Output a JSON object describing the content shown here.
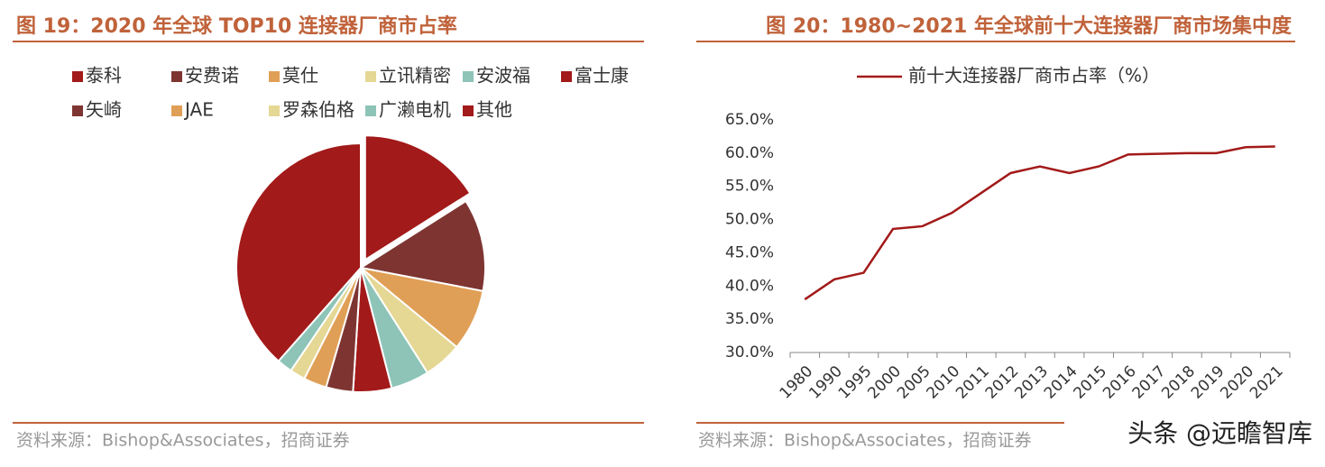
{
  "chart_data": [
    {
      "type": "pie",
      "title": "图 19：2020 年全球 TOP10 连接器厂商市占率",
      "categories": [
        "泰科",
        "安费诺",
        "莫仕",
        "立讯精密",
        "安波福",
        "富士康",
        "矢崎",
        "JAE",
        "罗森伯格",
        "广濑电机",
        "其他"
      ],
      "values": [
        16,
        12,
        8,
        5,
        5,
        5,
        3.5,
        3,
        2,
        2,
        38.5
      ],
      "colors": [
        "#a21a19",
        "#7e3532",
        "#e09f56",
        "#e5d794",
        "#8dc4b7",
        "#a21a19",
        "#7e3532",
        "#e09f56",
        "#e5d794",
        "#8dc4b7",
        "#a21a19"
      ],
      "source": "资料来源：Bishop&Associates，招商证券"
    },
    {
      "type": "line",
      "title": "图 20：1980~2021 年全球前十大连接器厂商市场集中度",
      "categories": [
        "1980",
        "1990",
        "1995",
        "2000",
        "2005",
        "2010",
        "2011",
        "2012",
        "2013",
        "2014",
        "2015",
        "2016",
        "2017",
        "2018",
        "2019",
        "2020",
        "2021"
      ],
      "series": [
        {
          "name": "前十大连接器厂商市占率（%）",
          "color": "#a21a19",
          "values": [
            38,
            41,
            42,
            48.6,
            49,
            51,
            54,
            57,
            58,
            57,
            58,
            59.8,
            59.9,
            60,
            60,
            60.9,
            61
          ]
        }
      ],
      "ylim": [
        30,
        65
      ],
      "yticks": [
        {
          "value": 30,
          "label": "30.0%"
        },
        {
          "value": 35,
          "label": "35.0%"
        },
        {
          "value": 40,
          "label": "40.0%"
        },
        {
          "value": 45,
          "label": "45.0%"
        },
        {
          "value": 50,
          "label": "50.0%"
        },
        {
          "value": 55,
          "label": "55.0%"
        },
        {
          "value": 60,
          "label": "60.0%"
        },
        {
          "value": 65,
          "label": "65.0%"
        }
      ],
      "source": "资料来源：Bishop&Associates，招商证券"
    }
  ],
  "watermark": "头条 @远瞻智库"
}
